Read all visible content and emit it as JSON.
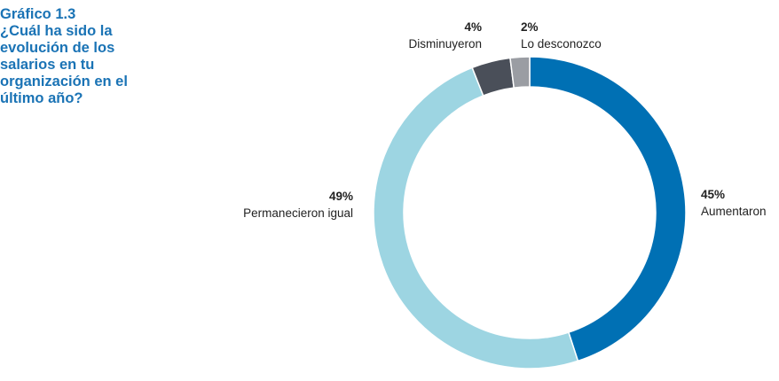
{
  "title": {
    "line1": "Gráfico 1.3",
    "lines": [
      "¿Cuál ha sido la",
      "evolución de los",
      "salarios en tu",
      "organización en el",
      "último año?"
    ]
  },
  "chart_data": {
    "type": "pie",
    "donut": true,
    "slices": [
      {
        "label": "Aumentaron",
        "value": 45,
        "value_label": "45%",
        "color": "#0070b4"
      },
      {
        "label": "Permanecieron igual",
        "value": 49,
        "value_label": "49%",
        "color": "#9dd5e2"
      },
      {
        "label": "Disminuyeron",
        "value": 4,
        "value_label": "4%",
        "color": "#4a4f59"
      },
      {
        "label": "Lo desconozco",
        "value": 2,
        "value_label": "2%",
        "color": "#9a9da3"
      }
    ]
  }
}
